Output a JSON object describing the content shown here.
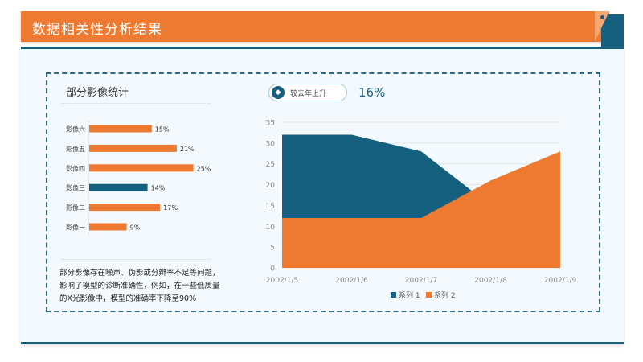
{
  "header": {
    "title": "数据相关性分析结果"
  },
  "left_panel": {
    "title": "部分影像统计",
    "description": "部分影像存在噪声、伪影或分辨率不足等问题，影响了模型的诊断准确性，例如，在一些低质量的X光影像中，模型的准确率下降至90%"
  },
  "badge": {
    "label": "较去年上升",
    "value": "16%",
    "icon": "diamond-icon"
  },
  "colors": {
    "orange": "#ee7a32",
    "blue": "#15607f"
  },
  "chart_data": [
    {
      "type": "bar",
      "orientation": "horizontal",
      "categories": [
        "影像六",
        "影像五",
        "影像四",
        "影像三",
        "影像二",
        "影像一"
      ],
      "values": [
        15,
        21,
        25,
        14,
        17,
        9
      ],
      "value_labels": [
        "15%",
        "21%",
        "25%",
        "14%",
        "17%",
        "9%"
      ],
      "highlight_index": 3,
      "unit": "%"
    },
    {
      "type": "area",
      "categories": [
        "2002/1/5",
        "2002/1/6",
        "2002/1/7",
        "2002/1/8",
        "2002/1/9"
      ],
      "series": [
        {
          "name": "系列 1",
          "values": [
            32,
            32,
            28,
            15,
            20
          ]
        },
        {
          "name": "系列 2",
          "values": [
            12,
            12,
            12,
            21,
            28
          ]
        }
      ],
      "ylim": [
        0,
        35
      ],
      "yticks": [
        0,
        5,
        10,
        15,
        20,
        25,
        30,
        35
      ],
      "grid": true,
      "legend": "bottom"
    }
  ]
}
